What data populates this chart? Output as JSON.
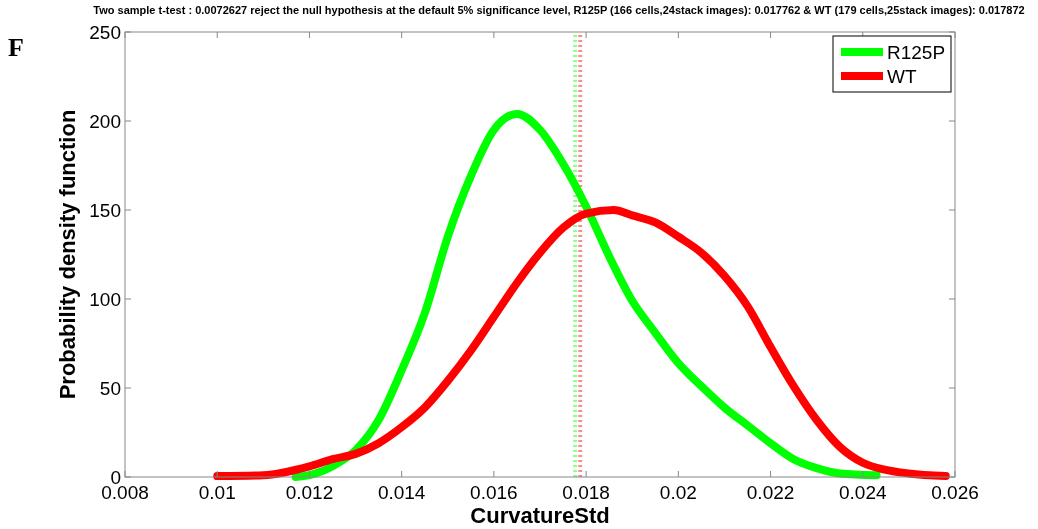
{
  "chart_data": {
    "type": "line",
    "title": "Two sample t-test : 0.0072627 reject the null hypothesis at the default 5% significance level, R125P (166 cells,24stack images): 0.017762 & WT (179 cells,25stack images): 0.017872",
    "xlabel": "CurvatureStd",
    "ylabel": "Probability density function",
    "annotations": [
      "F"
    ],
    "xlim": [
      0.008,
      0.026
    ],
    "xticks": [
      0.008,
      0.01,
      0.012,
      0.014,
      0.016,
      0.018,
      0.02,
      0.022,
      0.024,
      0.026
    ],
    "ylim": [
      0,
      250
    ],
    "yticks": [
      0,
      50,
      100,
      150,
      200,
      250
    ],
    "grid": false,
    "legend": "top right",
    "ref_lines": [
      {
        "axis": "x",
        "value": 0.017762,
        "color": "#00ff00",
        "line_style": "dotted"
      },
      {
        "axis": "x",
        "value": 0.017872,
        "color": "#ff0000",
        "line_style": "dotted"
      }
    ],
    "series": [
      {
        "name": "R125P",
        "color": "#00ff00",
        "x": [
          0.0117,
          0.012,
          0.0125,
          0.013,
          0.0135,
          0.014,
          0.0145,
          0.015,
          0.0155,
          0.016,
          0.0165,
          0.017,
          0.0175,
          0.018,
          0.0185,
          0.019,
          0.0195,
          0.02,
          0.0205,
          0.021,
          0.0215,
          0.022,
          0.0225,
          0.023,
          0.0235,
          0.0243
        ],
        "values": [
          0,
          1,
          6,
          15,
          32,
          60,
          92,
          135,
          169,
          195,
          204,
          195,
          176,
          152,
          124,
          99,
          81,
          64,
          51,
          39,
          29,
          19,
          10,
          5,
          2,
          1
        ]
      },
      {
        "name": "WT",
        "color": "#ff0000",
        "x": [
          0.01,
          0.011,
          0.012,
          0.0125,
          0.013,
          0.0135,
          0.014,
          0.0145,
          0.015,
          0.0155,
          0.016,
          0.0165,
          0.017,
          0.0175,
          0.018,
          0.0186,
          0.019,
          0.0195,
          0.02,
          0.0205,
          0.021,
          0.0215,
          0.022,
          0.0225,
          0.023,
          0.0235,
          0.024,
          0.0245,
          0.025,
          0.0258
        ],
        "values": [
          0.5,
          1,
          6,
          10,
          13,
          19,
          28,
          39,
          54,
          71,
          90,
          109,
          126,
          140,
          148,
          150,
          147,
          143,
          135,
          126,
          113,
          96,
          73,
          51,
          32,
          17,
          8,
          4,
          2,
          0.5
        ]
      }
    ]
  }
}
